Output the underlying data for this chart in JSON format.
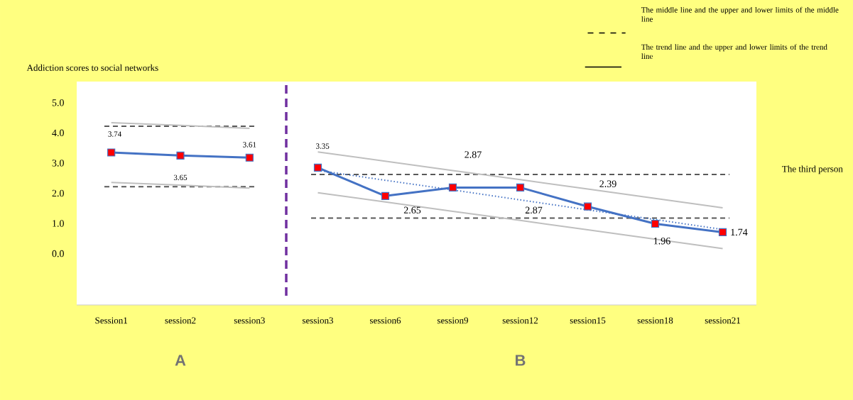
{
  "chart_data": [
    {
      "type": "line",
      "ylabel": "Addiction scores to social networks",
      "xlabel": "A",
      "categories": [
        "Session1",
        "session2",
        "session3"
      ],
      "ylim": [
        -1.7,
        5.7
      ],
      "yticks": [
        {
          "value": 0,
          "label": "0.0"
        },
        {
          "value": 1,
          "label": "1.0"
        },
        {
          "value": 2,
          "label": "2.0"
        },
        {
          "value": 3,
          "label": "3.0"
        },
        {
          "value": 4,
          "label": "4.0"
        },
        {
          "value": 5,
          "label": "5.0"
        }
      ],
      "marker": "square",
      "series": [
        {
          "color": "#4472c4",
          "colors": [
            "#ff0000",
            "#ff0000",
            "#ff0000"
          ],
          "values": [
            3.35,
            3.25,
            3.18
          ]
        },
        {
          "color": "#bfbfbf",
          "marker": "none",
          "values": [
            4.34,
            4.25,
            4.15
          ]
        },
        {
          "color": "#bfbfbf",
          "marker": "none",
          "values": [
            2.36,
            2.27,
            2.17
          ]
        }
      ],
      "ref_lines": [
        {
          "axis": "y",
          "value": 4.22,
          "color": "#595959",
          "line_style": "dashed"
        },
        {
          "axis": "y",
          "value": 2.22,
          "color": "#595959",
          "line_style": "dashed"
        }
      ],
      "annotations": [
        "3.74",
        "3.65",
        "3.61"
      ]
    },
    {
      "type": "line",
      "xlabel": "B",
      "categories": [
        "session3",
        "session6",
        "session9",
        "session12",
        "session15",
        "session18",
        "session21"
      ],
      "ylim": [
        -1.7,
        5.7
      ],
      "tick_labels": "x",
      "marker": "square",
      "series": [
        {
          "color": "#4472c4",
          "colors": [
            "#ff0000",
            "#ff0000",
            "#ff0000",
            "#ff0000",
            "#ff0000",
            "#ff0000",
            "#ff0000"
          ],
          "values": [
            2.85,
            1.91,
            2.19,
            2.19,
            1.56,
            0.99,
            0.71
          ]
        },
        {
          "color": "#4472c4",
          "marker": "none",
          "line_style": "dotted",
          "values": [
            2.76,
            2.43,
            2.11,
            1.78,
            1.45,
            1.13,
            0.8
          ]
        },
        {
          "color": "#bfbfbf",
          "marker": "none",
          "values": [
            3.37,
            3.06,
            2.75,
            2.45,
            2.14,
            1.83,
            1.52
          ]
        },
        {
          "color": "#bfbfbf",
          "marker": "none",
          "values": [
            2.02,
            1.71,
            1.4,
            1.1,
            0.79,
            0.48,
            0.17
          ]
        }
      ],
      "ref_lines": [
        {
          "axis": "y",
          "value": 2.62,
          "color": "#595959",
          "line_style": "dashed"
        },
        {
          "axis": "y",
          "value": 1.18,
          "color": "#595959",
          "line_style": "dashed"
        }
      ],
      "annotations": [
        "3.35",
        "2.87",
        "2.65",
        "2.87",
        "2.39",
        "1.96",
        "1.74",
        "The third person",
        "The middle line and the upper and lower limits of the middle line",
        "The trend line and the upper and lower limits of the trend line"
      ]
    }
  ]
}
